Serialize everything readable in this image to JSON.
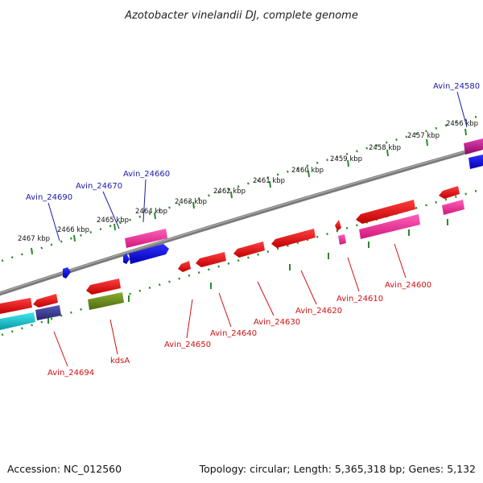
{
  "title": "Azotobacter vinelandii DJ, complete genome",
  "footer": {
    "accession": "Accession: NC_012560",
    "topology": "Topology: circular; Length: 5,365,318 bp; Genes: 5,132"
  },
  "kbp_labels": [
    "2467 kbp",
    "2466 kbp",
    "2465 kbp",
    "2464 kbp",
    "2463 kbp",
    "2462 kbp",
    "2461 kbp",
    "2460 kbp",
    "2459 kbp",
    "2458 kbp",
    "2457 kbp",
    "2456 kbp"
  ],
  "gene_labels_forward": [
    "Avin_24690",
    "Avin_24670",
    "Avin_24660",
    "Avin_24580"
  ],
  "gene_labels_reverse": [
    "Avin_24694",
    "kdsA",
    "Avin_24650",
    "Avin_24640",
    "Avin_24630",
    "Avin_24620",
    "Avin_24610",
    "Avin_24600"
  ],
  "colors": {
    "forward_label": "#1a1aa8",
    "reverse_label": "#d01010",
    "backbone": "#808080",
    "ticks": "#2a8a2a",
    "cds_red": "#ee0000",
    "cds_blue": "#1010ee",
    "cds_pink": "#ee2c98",
    "cds_magenta": "#c0108a",
    "cds_cyan": "#10c0c8",
    "cds_slate": "#3c3c90",
    "cds_olive": "#6a8a1e"
  }
}
